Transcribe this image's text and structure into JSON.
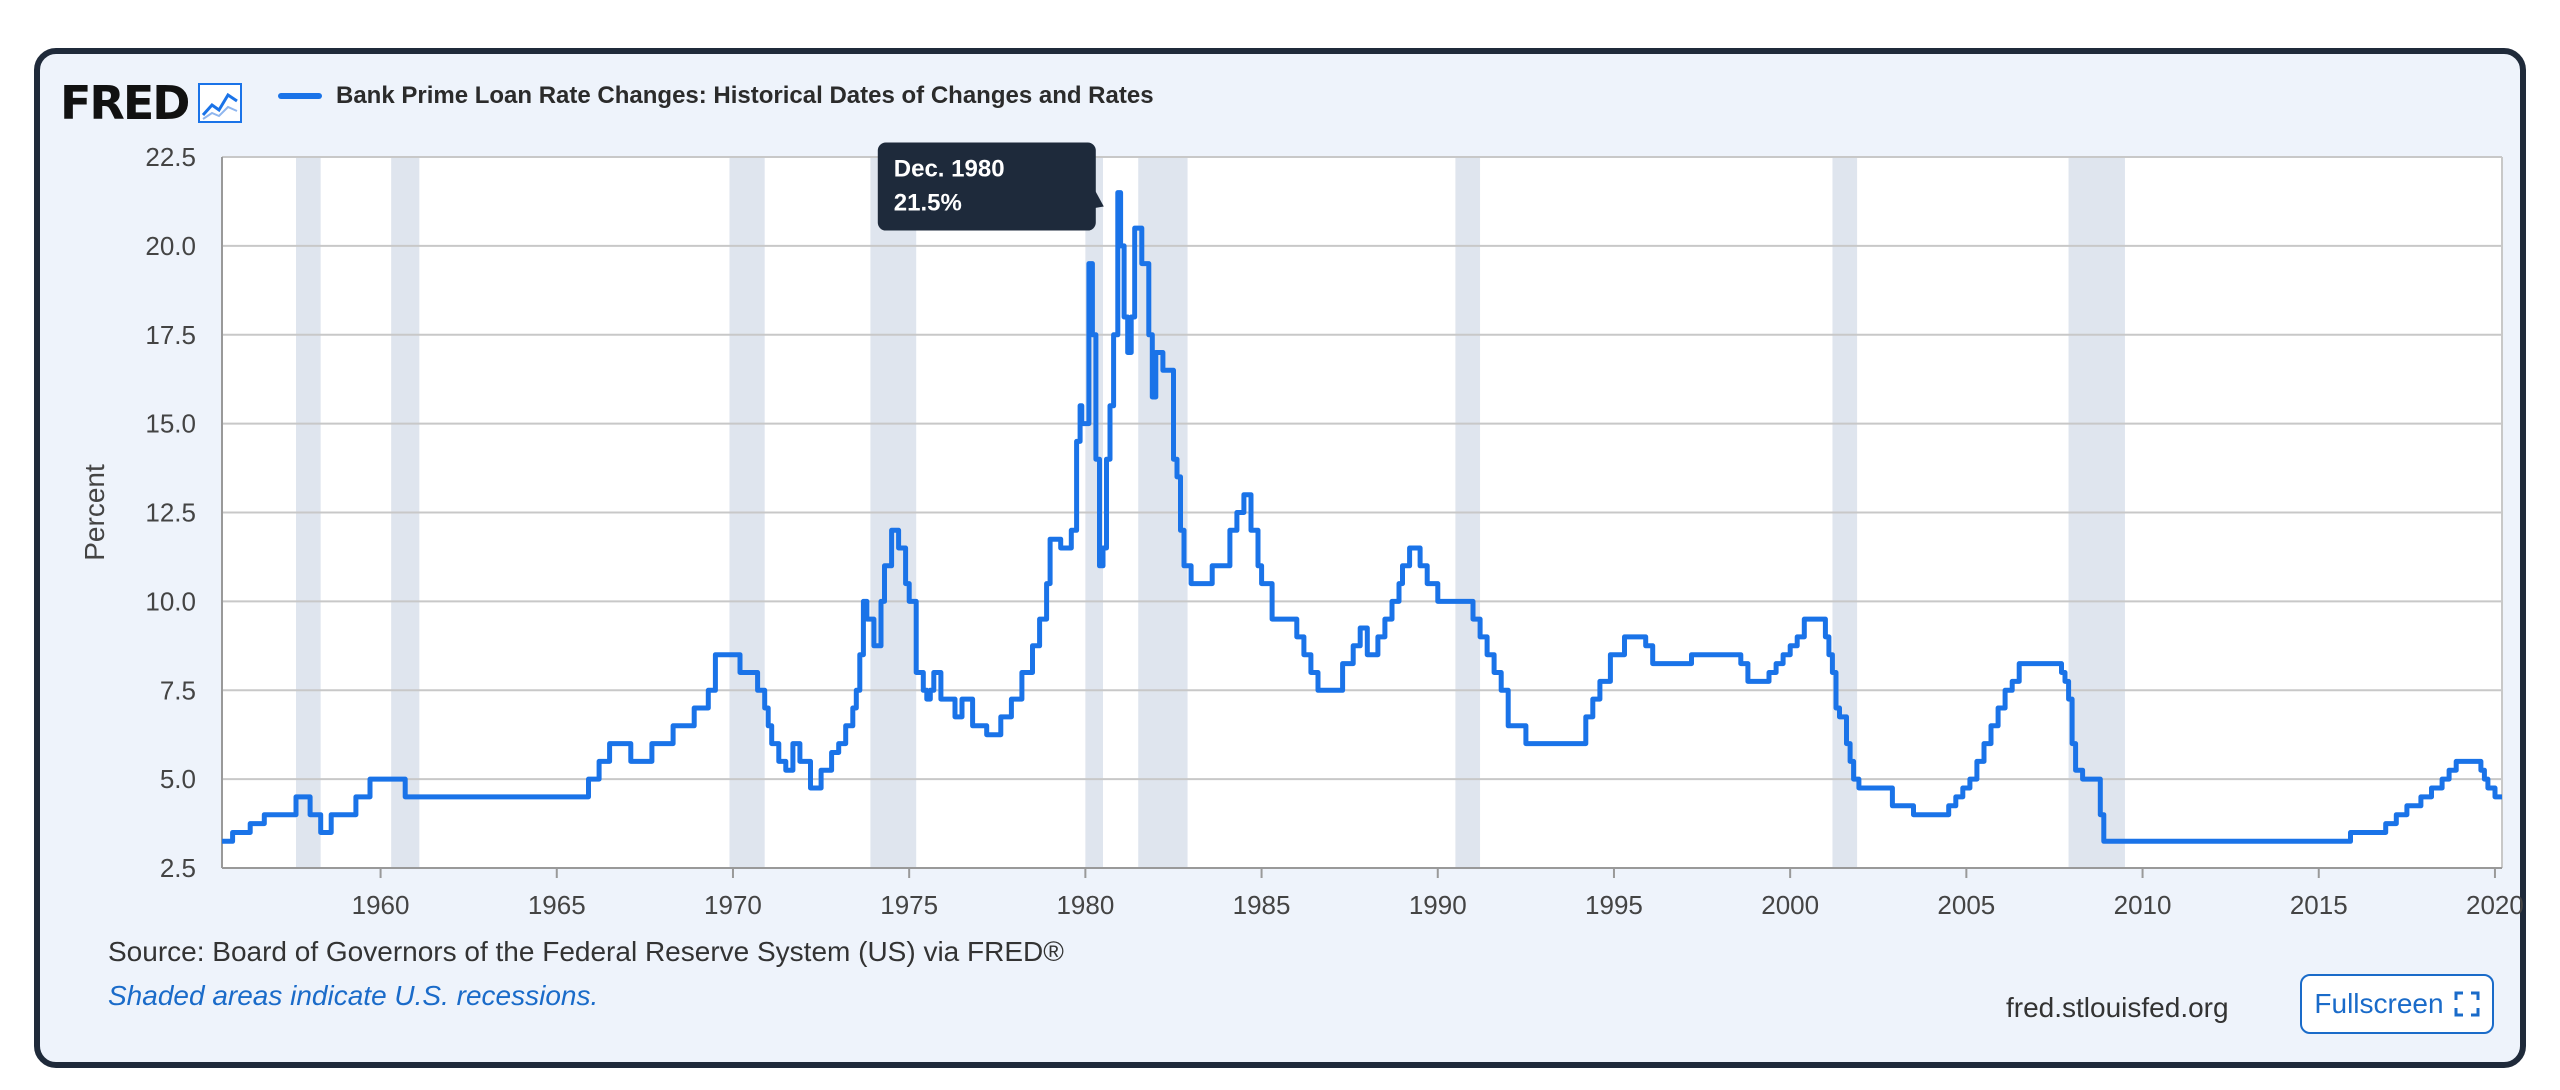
{
  "brand": {
    "logo_text": "FRED"
  },
  "source": "Source: Board of Governors of the Federal Reserve System (US) via FRED®",
  "note": "Shaded areas indicate U.S. recessions.",
  "site": "fred.stlouisfed.org",
  "fullscreen_label": "Fullscreen",
  "tooltip": {
    "date": "Dec. 1980",
    "value": "21.5%",
    "x": 1980.92,
    "y": 21.5
  },
  "colors": {
    "line": "#1a73e8",
    "recession": "#dfe5ee",
    "grid": "#c8c8c8",
    "frame": "#1f2a3a",
    "panel": "#eef3fb",
    "link": "#1a6bc9"
  },
  "chart_data": {
    "type": "line",
    "title": "Bank Prime Loan Rate Changes: Historical Dates of Changes and Rates",
    "xlabel": "",
    "ylabel": "Percent",
    "xlim": [
      1955.5,
      2020.2
    ],
    "ylim": [
      2.5,
      22.5
    ],
    "xticks": [
      1960,
      1965,
      1970,
      1975,
      1980,
      1985,
      1990,
      1995,
      2000,
      2005,
      2010,
      2015,
      2020
    ],
    "yticks": [
      "2.5",
      "5.0",
      "7.5",
      "10.0",
      "12.5",
      "15.0",
      "17.5",
      "20.0",
      "22.5"
    ],
    "grid": true,
    "recessions": [
      [
        1957.6,
        1958.3
      ],
      [
        1960.3,
        1961.1
      ],
      [
        1969.9,
        1970.9
      ],
      [
        1973.9,
        1975.2
      ],
      [
        1980.0,
        1980.5
      ],
      [
        1981.5,
        1982.9
      ],
      [
        1990.5,
        1991.2
      ],
      [
        2001.2,
        2001.9
      ],
      [
        2007.9,
        2009.5
      ]
    ],
    "series": [
      {
        "name": "Bank Prime Loan Rate Changes: Historical Dates of Changes and Rates",
        "x": [
          1955.5,
          1955.8,
          1956.3,
          1956.7,
          1957.6,
          1958.0,
          1958.3,
          1958.6,
          1959.3,
          1959.7,
          1960.7,
          1965.9,
          1966.2,
          1966.5,
          1967.1,
          1967.7,
          1968.3,
          1968.9,
          1969.3,
          1969.5,
          1970.2,
          1970.7,
          1970.9,
          1971.0,
          1971.1,
          1971.3,
          1971.5,
          1971.7,
          1971.9,
          1972.2,
          1972.5,
          1972.8,
          1973.0,
          1973.2,
          1973.4,
          1973.5,
          1973.6,
          1973.7,
          1973.8,
          1974.0,
          1974.2,
          1974.3,
          1974.5,
          1974.7,
          1974.9,
          1975.0,
          1975.2,
          1975.4,
          1975.5,
          1975.6,
          1975.7,
          1975.9,
          1976.3,
          1976.5,
          1976.8,
          1977.2,
          1977.6,
          1977.9,
          1978.2,
          1978.5,
          1978.7,
          1978.9,
          1979.0,
          1979.3,
          1979.6,
          1979.75,
          1979.85,
          1979.9,
          1980.1,
          1980.2,
          1980.3,
          1980.4,
          1980.5,
          1980.6,
          1980.7,
          1980.8,
          1980.92,
          1981.0,
          1981.1,
          1981.2,
          1981.3,
          1981.4,
          1981.6,
          1981.8,
          1981.9,
          1982.0,
          1982.2,
          1982.5,
          1982.6,
          1982.7,
          1982.8,
          1983.0,
          1983.6,
          1984.1,
          1984.3,
          1984.5,
          1984.7,
          1984.9,
          1985.0,
          1985.3,
          1985.6,
          1986.0,
          1986.2,
          1986.4,
          1986.6,
          1987.3,
          1987.6,
          1987.8,
          1988.0,
          1988.3,
          1988.5,
          1988.7,
          1988.9,
          1989.0,
          1989.2,
          1989.5,
          1989.7,
          1990.0,
          1990.7,
          1991.0,
          1991.2,
          1991.4,
          1991.6,
          1991.8,
          1992.0,
          1992.5,
          1994.2,
          1994.4,
          1994.6,
          1994.9,
          1995.3,
          1995.9,
          1996.1,
          1997.2,
          1998.6,
          1998.8,
          1998.9,
          1999.4,
          1999.6,
          1999.8,
          2000.0,
          2000.2,
          2000.4,
          2001.0,
          2001.1,
          2001.2,
          2001.3,
          2001.4,
          2001.6,
          2001.7,
          2001.8,
          2001.95,
          2002.9,
          2003.5,
          2004.5,
          2004.7,
          2004.9,
          2005.1,
          2005.3,
          2005.5,
          2005.7,
          2005.9,
          2006.1,
          2006.3,
          2006.5,
          2007.7,
          2007.8,
          2007.9,
          2008.0,
          2008.1,
          2008.3,
          2008.8,
          2008.9,
          2009.0,
          2015.9,
          2016.9,
          2017.2,
          2017.5,
          2017.9,
          2018.2,
          2018.5,
          2018.7,
          2018.9,
          2019.6,
          2019.7,
          2019.8,
          2020.0,
          2020.2
        ],
        "y": [
          3.25,
          3.5,
          3.75,
          4.0,
          4.5,
          4.0,
          3.5,
          4.0,
          4.5,
          5.0,
          4.5,
          5.0,
          5.5,
          6.0,
          5.5,
          6.0,
          6.5,
          7.0,
          7.5,
          8.5,
          8.0,
          7.5,
          7.0,
          6.5,
          6.0,
          5.5,
          5.25,
          6.0,
          5.5,
          4.75,
          5.25,
          5.75,
          6.0,
          6.5,
          7.0,
          7.5,
          8.5,
          10.0,
          9.5,
          8.75,
          10.0,
          11.0,
          12.0,
          11.5,
          10.5,
          10.0,
          8.0,
          7.5,
          7.25,
          7.5,
          8.0,
          7.25,
          6.75,
          7.25,
          6.5,
          6.25,
          6.75,
          7.25,
          8.0,
          8.75,
          9.5,
          10.5,
          11.75,
          11.5,
          12.0,
          14.5,
          15.5,
          15.0,
          19.5,
          17.5,
          14.0,
          11.0,
          11.5,
          14.0,
          15.5,
          17.5,
          21.5,
          20.0,
          18.0,
          17.0,
          18.0,
          20.5,
          19.5,
          17.5,
          15.75,
          17.0,
          16.5,
          14.0,
          13.5,
          12.0,
          11.0,
          10.5,
          11.0,
          12.0,
          12.5,
          13.0,
          12.0,
          11.0,
          10.5,
          9.5,
          9.5,
          9.0,
          8.5,
          8.0,
          7.5,
          8.25,
          8.75,
          9.25,
          8.5,
          9.0,
          9.5,
          10.0,
          10.5,
          11.0,
          11.5,
          11.0,
          10.5,
          10.0,
          10.0,
          9.5,
          9.0,
          8.5,
          8.0,
          7.5,
          6.5,
          6.0,
          6.75,
          7.25,
          7.75,
          8.5,
          9.0,
          8.75,
          8.25,
          8.5,
          8.25,
          7.75,
          7.75,
          8.0,
          8.25,
          8.5,
          8.75,
          9.0,
          9.5,
          9.0,
          8.5,
          8.0,
          7.0,
          6.75,
          6.0,
          5.5,
          5.0,
          4.75,
          4.25,
          4.0,
          4.25,
          4.5,
          4.75,
          5.0,
          5.5,
          6.0,
          6.5,
          7.0,
          7.5,
          7.75,
          8.25,
          8.0,
          7.75,
          7.25,
          6.0,
          5.25,
          5.0,
          4.0,
          3.25,
          3.25,
          3.5,
          3.75,
          4.0,
          4.25,
          4.5,
          4.75,
          5.0,
          5.25,
          5.5,
          5.25,
          5.0,
          4.75,
          4.5,
          4.5
        ]
      }
    ]
  }
}
